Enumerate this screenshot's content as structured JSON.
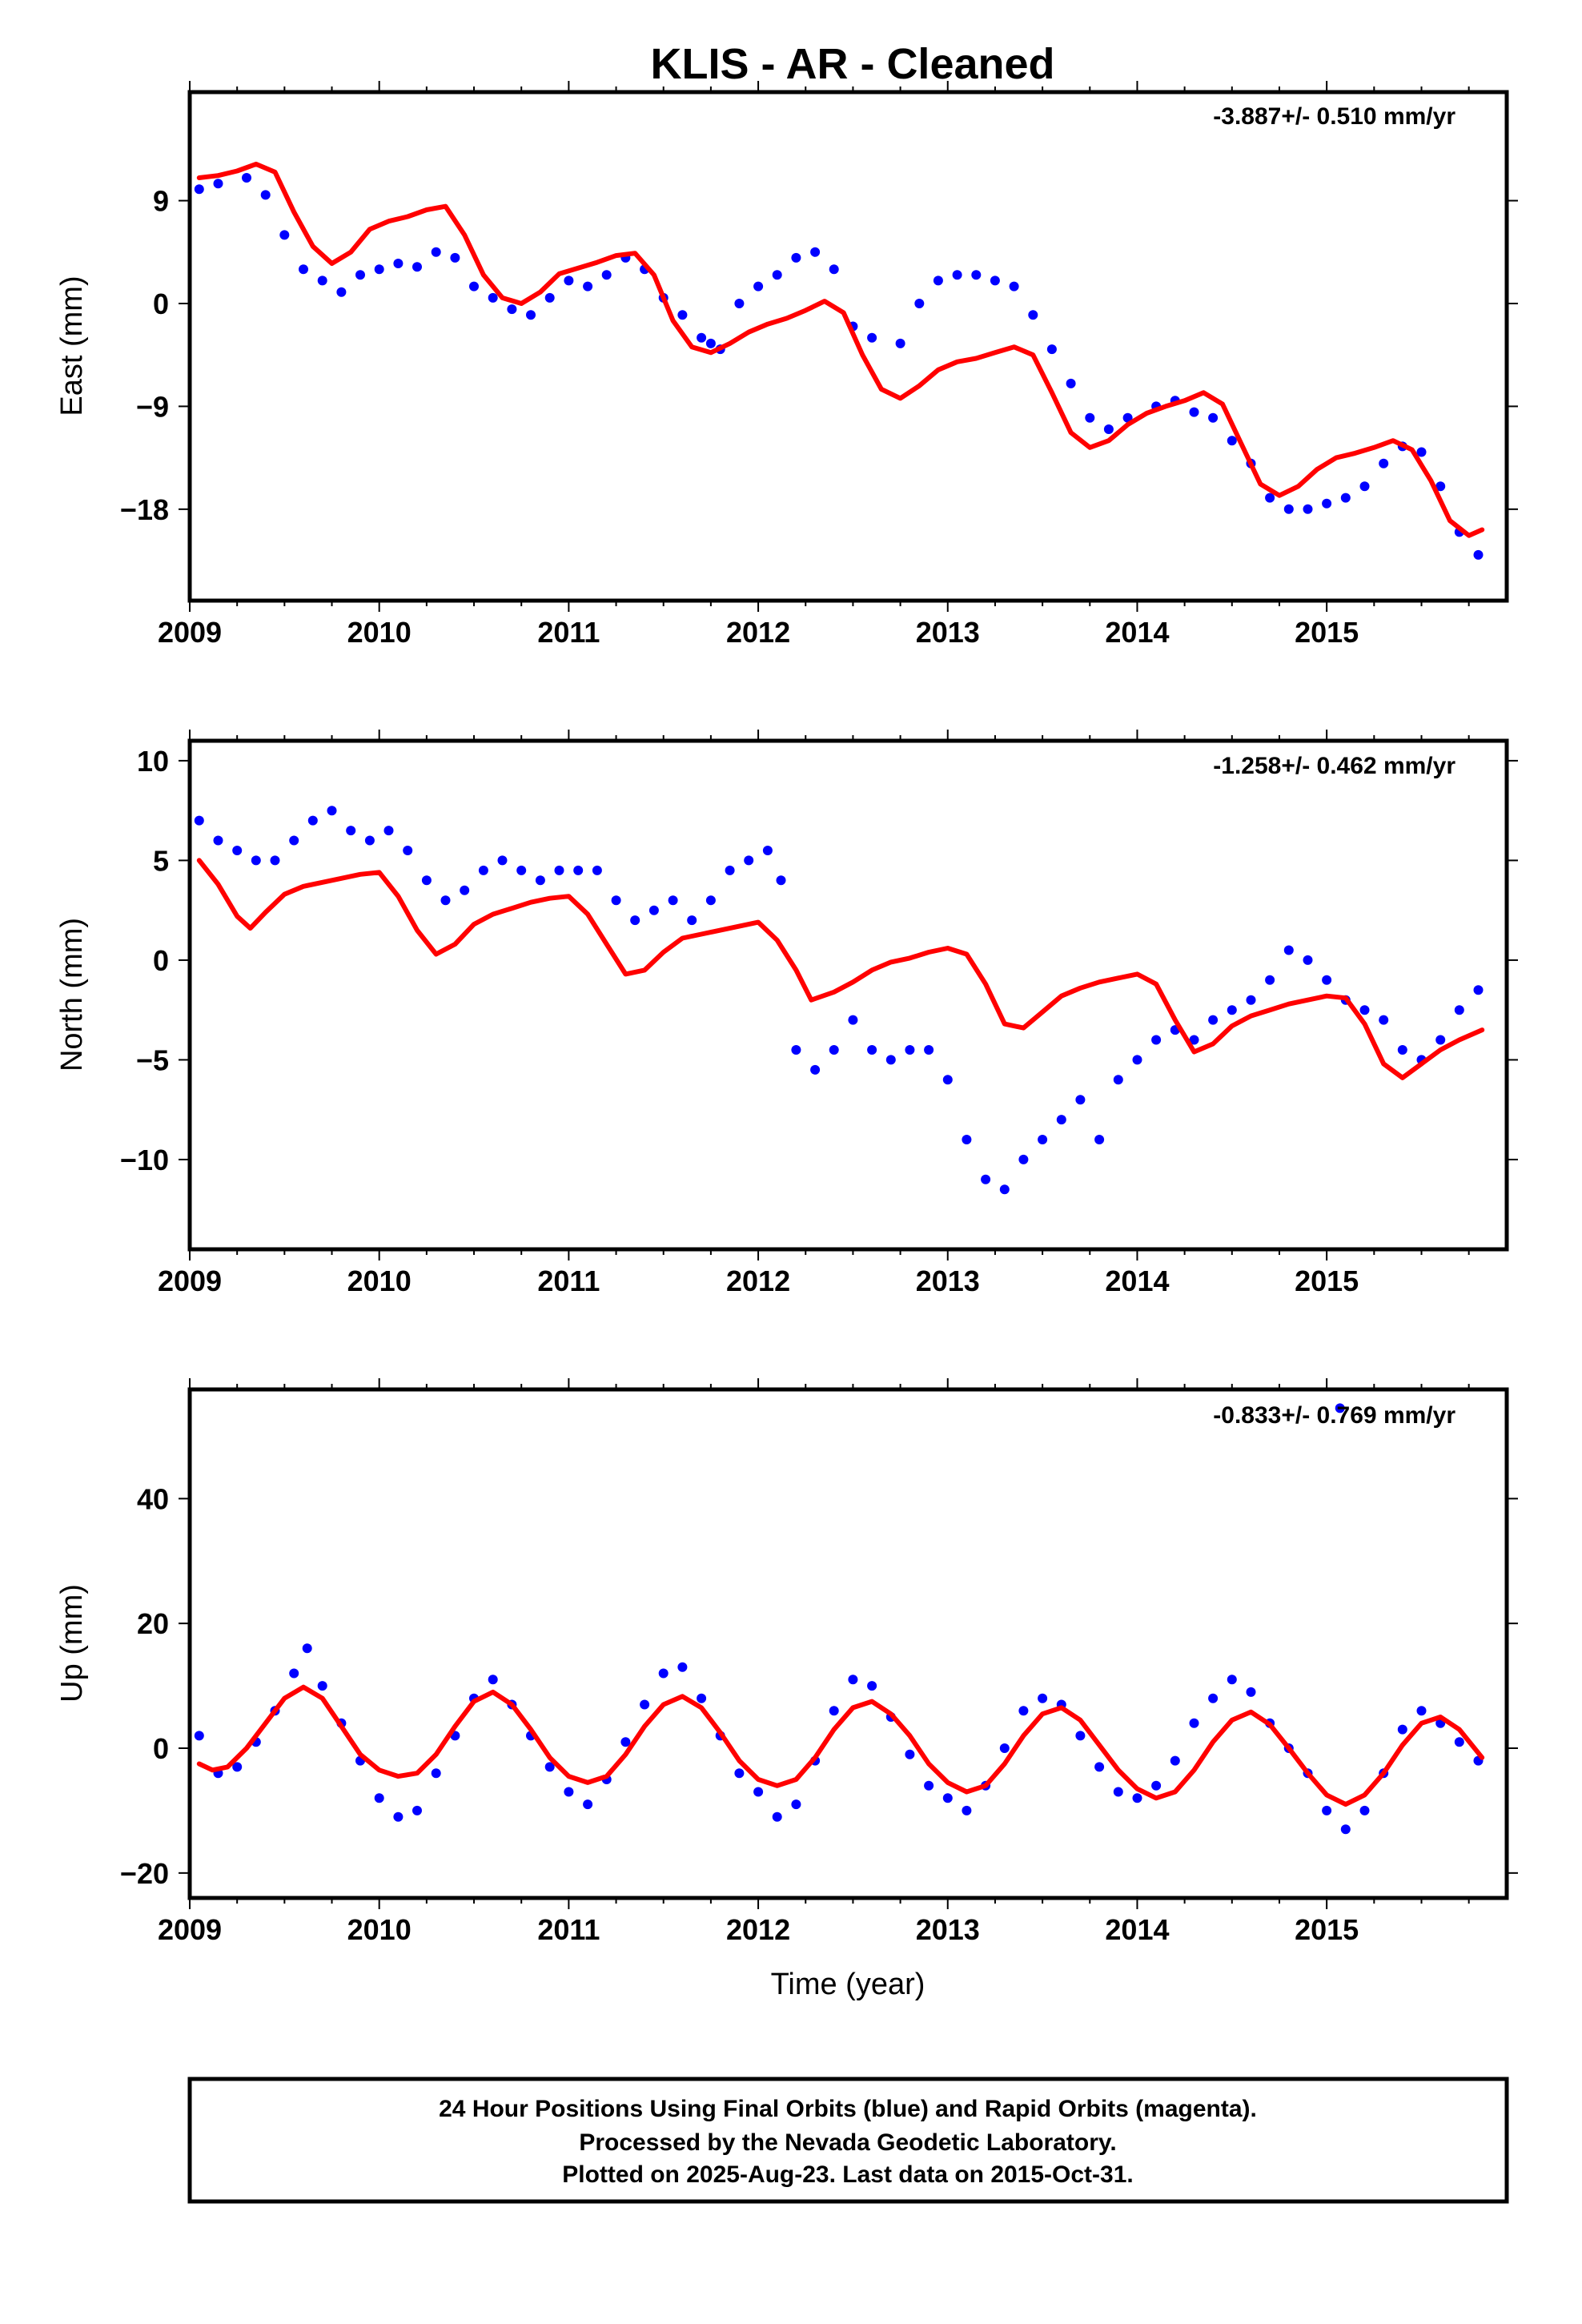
{
  "title": "KLIS  - AR - Cleaned",
  "colors": {
    "dots": "#0000ff",
    "fit": "#ff0000",
    "frame": "#000000"
  },
  "chart_data": [
    {
      "type": "scatter",
      "ylabel": "East (mm)",
      "xlabel": "",
      "rate_label": "-3.887+/- 0.510 mm/yr",
      "xlim": [
        2009.0,
        2015.95
      ],
      "ylim": [
        -26.0,
        18.5
      ],
      "xticks": [
        2009,
        2010,
        2011,
        2012,
        2013,
        2014,
        2015
      ],
      "xtick_labels": [
        "2009",
        "2010",
        "2011",
        "2012",
        "2013",
        "2014",
        "2015"
      ],
      "yticks": [
        9,
        0,
        -9,
        -18
      ],
      "ytick_labels": [
        "9",
        "0",
        "−9",
        "−18"
      ],
      "series": [
        {
          "style": "dots",
          "x": [
            2009.05,
            2009.15,
            2009.3,
            2009.4,
            2009.5,
            2009.6,
            2009.7,
            2009.8,
            2009.9,
            2010.0,
            2010.1,
            2010.2,
            2010.3,
            2010.4,
            2010.5,
            2010.6,
            2010.7,
            2010.8,
            2010.9,
            2011.0,
            2011.1,
            2011.2,
            2011.3,
            2011.4,
            2011.5,
            2011.6,
            2011.7,
            2011.75,
            2011.8,
            2011.9,
            2012.0,
            2012.1,
            2012.2,
            2012.3,
            2012.4,
            2012.5,
            2012.6,
            2012.75,
            2012.85,
            2012.95,
            2013.05,
            2013.15,
            2013.25,
            2013.35,
            2013.45,
            2013.55,
            2013.65,
            2013.75,
            2013.85,
            2013.95,
            2014.1,
            2014.2,
            2014.3,
            2014.4,
            2014.5,
            2014.6,
            2014.7,
            2014.8,
            2014.9,
            2015.0,
            2015.1,
            2015.2,
            2015.3,
            2015.4,
            2015.5,
            2015.6,
            2015.7,
            2015.8
          ],
          "y": [
            10,
            10.5,
            11,
            9.5,
            6,
            3,
            2,
            1,
            2.5,
            3,
            3.5,
            3.2,
            4.5,
            4,
            1.5,
            0.5,
            -0.5,
            -1,
            0.5,
            2,
            1.5,
            2.5,
            4,
            3,
            0.5,
            -1,
            -3,
            -3.5,
            -4,
            0,
            1.5,
            2.5,
            4,
            4.5,
            3,
            -2,
            -3,
            -3.5,
            0,
            2,
            2.5,
            2.5,
            2,
            1.5,
            -1,
            -4,
            -7,
            -10,
            -11,
            -10,
            -9,
            -8.5,
            -9.5,
            -10,
            -12,
            -14,
            -17,
            -18,
            -18,
            -17.5,
            -17,
            -16,
            -14,
            -12.5,
            -13,
            -16,
            -20,
            -22
          ]
        },
        {
          "style": "line",
          "x": [
            2009.05,
            2009.15,
            2009.25,
            2009.35,
            2009.45,
            2009.55,
            2009.65,
            2009.75,
            2009.85,
            2009.95,
            2010.05,
            2010.15,
            2010.25,
            2010.35,
            2010.45,
            2010.55,
            2010.65,
            2010.75,
            2010.85,
            2010.95,
            2011.05,
            2011.15,
            2011.25,
            2011.35,
            2011.45,
            2011.55,
            2011.65,
            2011.75,
            2011.85,
            2011.95,
            2012.05,
            2012.15,
            2012.25,
            2012.35,
            2012.45,
            2012.55,
            2012.65,
            2012.75,
            2012.85,
            2012.95,
            2013.05,
            2013.15,
            2013.25,
            2013.35,
            2013.45,
            2013.55,
            2013.65,
            2013.75,
            2013.85,
            2013.95,
            2014.05,
            2014.15,
            2014.25,
            2014.35,
            2014.45,
            2014.55,
            2014.65,
            2014.75,
            2014.85,
            2014.95,
            2015.05,
            2015.15,
            2015.25,
            2015.35,
            2015.45,
            2015.55,
            2015.65,
            2015.75,
            2015.82
          ],
          "y": [
            11,
            11.2,
            11.6,
            12.2,
            11.5,
            8,
            5,
            3.5,
            4.5,
            6.5,
            7.2,
            7.6,
            8.2,
            8.5,
            6,
            2.5,
            0.5,
            0,
            1,
            2.6,
            3.1,
            3.6,
            4.2,
            4.4,
            2.5,
            -1.5,
            -3.8,
            -4.3,
            -3.5,
            -2.5,
            -1.8,
            -1.3,
            -0.6,
            0.2,
            -0.8,
            -4.5,
            -7.5,
            -8.3,
            -7.2,
            -5.8,
            -5.1,
            -4.8,
            -4.3,
            -3.8,
            -4.5,
            -7.8,
            -11.3,
            -12.6,
            -12,
            -10.6,
            -9.6,
            -9,
            -8.5,
            -7.8,
            -8.8,
            -12.3,
            -15.8,
            -16.8,
            -16,
            -14.5,
            -13.5,
            -13.1,
            -12.6,
            -12,
            -12.8,
            -15.5,
            -19,
            -20.3,
            -19.8
          ]
        }
      ]
    },
    {
      "type": "scatter",
      "ylabel": "North (mm)",
      "xlabel": "",
      "rate_label": "-1.258+/- 0.462 mm/yr",
      "xlim": [
        2009.0,
        2015.95
      ],
      "ylim": [
        -14.5,
        11.0
      ],
      "xticks": [
        2009,
        2010,
        2011,
        2012,
        2013,
        2014,
        2015
      ],
      "xtick_labels": [
        "2009",
        "2010",
        "2011",
        "2012",
        "2013",
        "2014",
        "2015"
      ],
      "yticks": [
        10,
        5,
        0,
        -5,
        -10
      ],
      "ytick_labels": [
        "10",
        "5",
        "0",
        "−5",
        "−10"
      ],
      "series": [
        {
          "style": "dots",
          "x": [
            2009.05,
            2009.15,
            2009.25,
            2009.35,
            2009.45,
            2009.55,
            2009.65,
            2009.75,
            2009.85,
            2009.95,
            2010.05,
            2010.15,
            2010.25,
            2010.35,
            2010.45,
            2010.55,
            2010.65,
            2010.75,
            2010.85,
            2010.95,
            2011.05,
            2011.15,
            2011.25,
            2011.35,
            2011.45,
            2011.55,
            2011.65,
            2011.75,
            2011.85,
            2011.95,
            2012.05,
            2012.12,
            2012.2,
            2012.3,
            2012.4,
            2012.5,
            2012.6,
            2012.7,
            2012.8,
            2012.9,
            2013.0,
            2013.1,
            2013.2,
            2013.3,
            2013.4,
            2013.5,
            2013.6,
            2013.7,
            2013.8,
            2013.9,
            2014.0,
            2014.1,
            2014.2,
            2014.3,
            2014.4,
            2014.5,
            2014.6,
            2014.7,
            2014.8,
            2014.9,
            2015.0,
            2015.1,
            2015.2,
            2015.3,
            2015.4,
            2015.5,
            2015.6,
            2015.7,
            2015.8
          ],
          "y": [
            7,
            6,
            5.5,
            5,
            5,
            6,
            7,
            7.5,
            6.5,
            6,
            6.5,
            5.5,
            4,
            3,
            3.5,
            4.5,
            5,
            4.5,
            4,
            4.5,
            4.5,
            4.5,
            3,
            2,
            2.5,
            3,
            2,
            3,
            4.5,
            5,
            5.5,
            4,
            -4.5,
            -5.5,
            -4.5,
            -3,
            -4.5,
            -5,
            -4.5,
            -4.5,
            -6,
            -9,
            -11,
            -11.5,
            -10,
            -9,
            -8,
            -7,
            -9,
            -6,
            -5,
            -4,
            -3.5,
            -4,
            -3,
            -2.5,
            -2,
            -1,
            0.5,
            0,
            -1,
            -2,
            -2.5,
            -3,
            -4.5,
            -5,
            -4,
            -2.5,
            -1.5
          ]
        },
        {
          "style": "line",
          "x": [
            2009.05,
            2009.15,
            2009.25,
            2009.32,
            2009.4,
            2009.5,
            2009.6,
            2009.7,
            2009.8,
            2009.9,
            2010.0,
            2010.1,
            2010.2,
            2010.3,
            2010.4,
            2010.5,
            2010.6,
            2010.7,
            2010.8,
            2010.9,
            2011.0,
            2011.1,
            2011.2,
            2011.3,
            2011.4,
            2011.5,
            2011.6,
            2011.7,
            2011.8,
            2011.9,
            2012.0,
            2012.1,
            2012.2,
            2012.28,
            2012.4,
            2012.5,
            2012.6,
            2012.7,
            2012.8,
            2012.9,
            2013.0,
            2013.1,
            2013.2,
            2013.3,
            2013.4,
            2013.5,
            2013.6,
            2013.7,
            2013.8,
            2013.9,
            2014.0,
            2014.1,
            2014.2,
            2014.3,
            2014.4,
            2014.5,
            2014.6,
            2014.7,
            2014.8,
            2014.9,
            2015.0,
            2015.1,
            2015.2,
            2015.3,
            2015.4,
            2015.5,
            2015.6,
            2015.7,
            2015.82
          ],
          "y": [
            5,
            3.8,
            2.2,
            1.6,
            2.4,
            3.3,
            3.7,
            3.9,
            4.1,
            4.3,
            4.4,
            3.2,
            1.5,
            0.3,
            0.8,
            1.8,
            2.3,
            2.6,
            2.9,
            3.1,
            3.2,
            2.3,
            0.8,
            -0.7,
            -0.5,
            0.4,
            1.1,
            1.3,
            1.5,
            1.7,
            1.9,
            1,
            -0.5,
            -2,
            -1.6,
            -1.1,
            -0.5,
            -0.1,
            0.1,
            0.4,
            0.6,
            0.3,
            -1.2,
            -3.2,
            -3.4,
            -2.6,
            -1.8,
            -1.4,
            -1.1,
            -0.9,
            -0.7,
            -1.2,
            -3,
            -4.6,
            -4.2,
            -3.3,
            -2.8,
            -2.5,
            -2.2,
            -2,
            -1.8,
            -1.9,
            -3.2,
            -5.2,
            -5.9,
            -5.2,
            -4.5,
            -4,
            -3.5
          ]
        }
      ]
    },
    {
      "type": "scatter",
      "ylabel": "Up (mm)",
      "xlabel": "Time (year)",
      "rate_label": "-0.833+/- 0.769 mm/yr",
      "xlim": [
        2009.0,
        2015.95
      ],
      "ylim": [
        -24.0,
        57.5
      ],
      "xticks": [
        2009,
        2010,
        2011,
        2012,
        2013,
        2014,
        2015
      ],
      "xtick_labels": [
        "2009",
        "2010",
        "2011",
        "2012",
        "2013",
        "2014",
        "2015"
      ],
      "yticks": [
        40,
        20,
        0,
        -20
      ],
      "ytick_labels": [
        "40",
        "20",
        "0",
        "−20"
      ],
      "series": [
        {
          "style": "dots",
          "x": [
            2009.05,
            2009.15,
            2009.25,
            2009.35,
            2009.45,
            2009.55,
            2009.62,
            2009.7,
            2009.8,
            2009.9,
            2010.0,
            2010.1,
            2010.2,
            2010.3,
            2010.4,
            2010.5,
            2010.6,
            2010.7,
            2010.8,
            2010.9,
            2011.0,
            2011.1,
            2011.2,
            2011.3,
            2011.4,
            2011.5,
            2011.6,
            2011.7,
            2011.8,
            2011.9,
            2012.0,
            2012.1,
            2012.2,
            2012.3,
            2012.4,
            2012.5,
            2012.6,
            2012.7,
            2012.8,
            2012.9,
            2013.0,
            2013.1,
            2013.2,
            2013.3,
            2013.4,
            2013.5,
            2013.6,
            2013.7,
            2013.8,
            2013.9,
            2014.0,
            2014.1,
            2014.2,
            2014.3,
            2014.4,
            2014.5,
            2014.6,
            2014.7,
            2014.8,
            2014.9,
            2015.0,
            2015.1,
            2015.2,
            2015.3,
            2015.4,
            2015.5,
            2015.6,
            2015.7,
            2015.8,
            2015.07
          ],
          "y": [
            2,
            -4,
            -3,
            1,
            6,
            12,
            16,
            10,
            4,
            -2,
            -8,
            -11,
            -10,
            -4,
            2,
            8,
            11,
            7,
            2,
            -3,
            -7,
            -9,
            -5,
            1,
            7,
            12,
            13,
            8,
            2,
            -4,
            -7,
            -11,
            -9,
            -2,
            6,
            11,
            10,
            5,
            -1,
            -6,
            -8,
            -10,
            -6,
            0,
            6,
            8,
            7,
            2,
            -3,
            -7,
            -8,
            -6,
            -2,
            4,
            8,
            11,
            9,
            4,
            0,
            -4,
            -10,
            -13,
            -10,
            -4,
            3,
            6,
            4,
            1,
            -2,
            54.5
          ]
        },
        {
          "style": "line",
          "x": [
            2009.05,
            2009.12,
            2009.2,
            2009.3,
            2009.4,
            2009.5,
            2009.6,
            2009.7,
            2009.8,
            2009.9,
            2010.0,
            2010.1,
            2010.2,
            2010.3,
            2010.4,
            2010.5,
            2010.6,
            2010.7,
            2010.8,
            2010.9,
            2011.0,
            2011.1,
            2011.2,
            2011.3,
            2011.4,
            2011.5,
            2011.6,
            2011.7,
            2011.8,
            2011.9,
            2012.0,
            2012.1,
            2012.2,
            2012.3,
            2012.4,
            2012.5,
            2012.6,
            2012.7,
            2012.8,
            2012.9,
            2013.0,
            2013.1,
            2013.2,
            2013.3,
            2013.4,
            2013.5,
            2013.6,
            2013.7,
            2013.8,
            2013.9,
            2014.0,
            2014.1,
            2014.2,
            2014.3,
            2014.4,
            2014.5,
            2014.6,
            2014.7,
            2014.8,
            2014.9,
            2015.0,
            2015.1,
            2015.2,
            2015.3,
            2015.4,
            2015.5,
            2015.6,
            2015.7,
            2015.82
          ],
          "y": [
            -2.5,
            -3.5,
            -3,
            0,
            4,
            8,
            9.8,
            8,
            3.5,
            -1,
            -3.5,
            -4.5,
            -4,
            -1,
            3.5,
            7.5,
            9,
            7,
            3,
            -1.5,
            -4.5,
            -5.5,
            -4.5,
            -1,
            3.5,
            7,
            8.3,
            6.5,
            2.5,
            -2,
            -5,
            -6,
            -5,
            -1.5,
            3,
            6.5,
            7.5,
            5.5,
            2,
            -2.5,
            -5.5,
            -7,
            -6,
            -2.5,
            2,
            5.5,
            6.5,
            4.5,
            0.5,
            -3.5,
            -6.5,
            -8,
            -7,
            -3.5,
            1,
            4.5,
            5.8,
            3.8,
            0,
            -4,
            -7.5,
            -9,
            -7.5,
            -4,
            0.5,
            4,
            5,
            3,
            -1.5
          ]
        }
      ]
    }
  ],
  "footer": {
    "line1": "24 Hour Positions Using Final Orbits (blue) and Rapid Orbits (magenta).",
    "line2": "Processed by the Nevada Geodetic Laboratory.",
    "line3": "Plotted on 2025-Aug-23. Last data on 2015-Oct-31."
  }
}
